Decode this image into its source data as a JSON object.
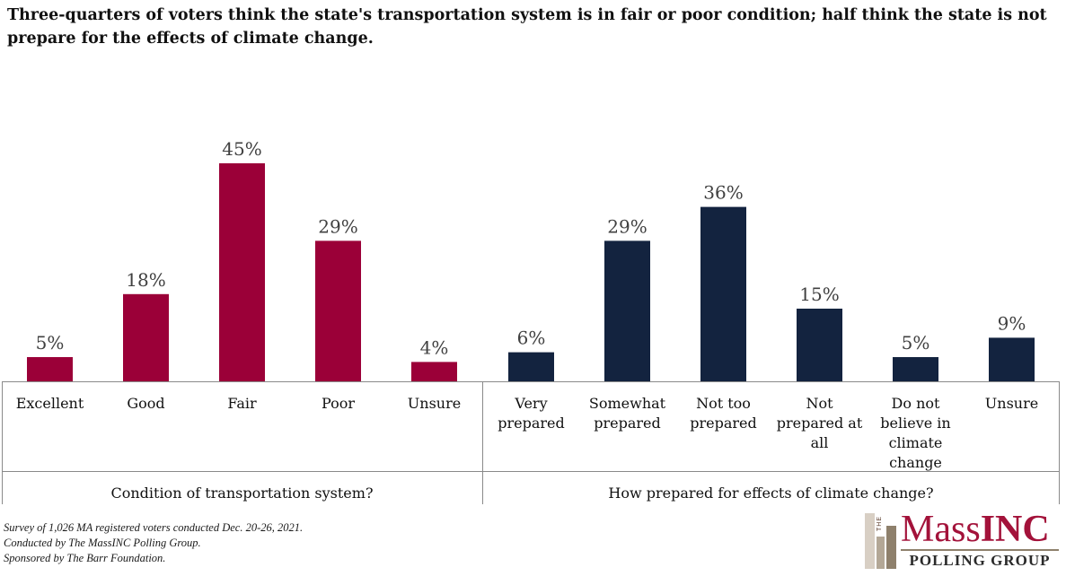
{
  "title": "Three-quarters of voters think the state's transportation system is in fair or poor condition; half think the state is not prepare for the effects of climate change.",
  "chart_data": [
    {
      "type": "bar",
      "group_label": "Condition of transportation system?",
      "categories": [
        [
          "Excellent"
        ],
        [
          "Good"
        ],
        [
          "Fair"
        ],
        [
          "Poor"
        ],
        [
          "Unsure"
        ]
      ],
      "values": [
        5,
        18,
        45,
        29,
        4
      ],
      "value_format": "percent",
      "color": "#9b0038",
      "ylim": [
        0,
        50
      ]
    },
    {
      "type": "bar",
      "group_label": "How prepared for effects of climate change?",
      "categories": [
        [
          "Very",
          "prepared"
        ],
        [
          "Somewhat",
          "prepared"
        ],
        [
          "Not too",
          "prepared"
        ],
        [
          "Not",
          "prepared at",
          "all"
        ],
        [
          "Do not",
          "believe in",
          "climate",
          "change"
        ],
        [
          "Unsure"
        ]
      ],
      "values": [
        6,
        29,
        36,
        15,
        5,
        9
      ],
      "value_format": "percent",
      "color": "#13233f",
      "ylim": [
        0,
        50
      ]
    }
  ],
  "footnote": [
    "Survey of 1,026 MA registered voters conducted Dec. 20-26, 2021.",
    "Conducted by The MassINC Polling Group.",
    "Sponsored by The Barr Foundation."
  ],
  "logo": {
    "the": "THE",
    "name_part1": "Mass",
    "name_part2": "INC",
    "subtitle": "POLLING GROUP"
  }
}
